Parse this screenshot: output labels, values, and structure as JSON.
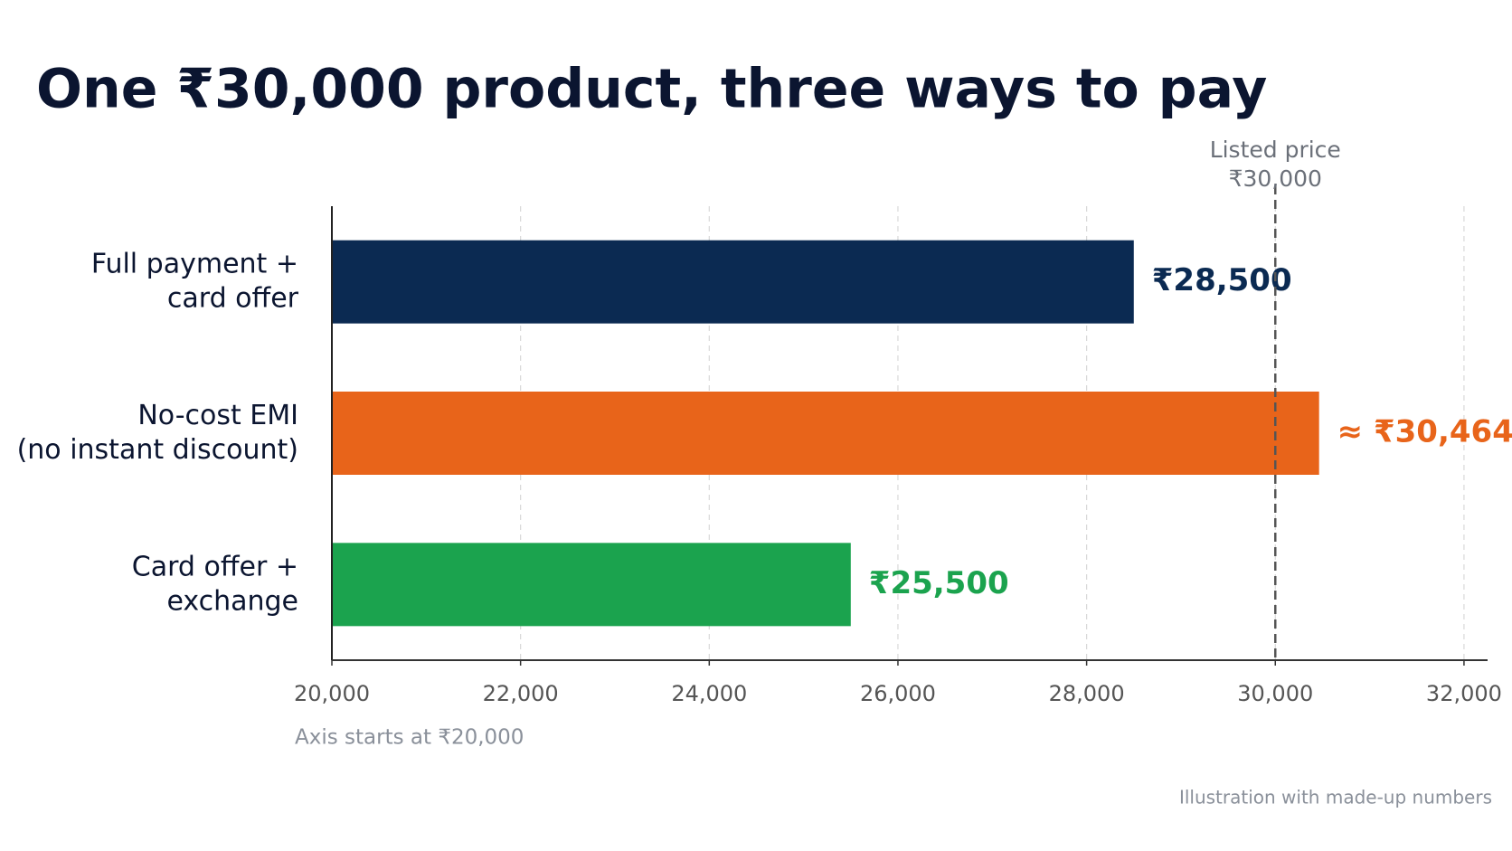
{
  "chart_data": {
    "type": "bar",
    "orientation": "horizontal",
    "title": "One ₹30,000 product, three ways to pay",
    "categories": [
      "Full payment +\ncard offer",
      "No-cost EMI\n(no instant discount)",
      "Card offer +\nexchange"
    ],
    "values": [
      28500,
      30464,
      25500
    ],
    "value_labels": [
      "₹28,500",
      "≈ ₹30,464",
      "₹25,500"
    ],
    "colors": [
      "#0b2a52",
      "#e8641a",
      "#1ba34e"
    ],
    "xlim": [
      20000,
      32250
    ],
    "xticks": [
      {
        "value": 20000,
        "label": "20,000"
      },
      {
        "value": 22000,
        "label": "22,000"
      },
      {
        "value": 24000,
        "label": "24,000"
      },
      {
        "value": 26000,
        "label": "26,000"
      },
      {
        "value": 28000,
        "label": "28,000"
      },
      {
        "value": 30000,
        "label": "30,000"
      },
      {
        "value": 32000,
        "label": "32,000"
      }
    ],
    "grid": true,
    "reference_line": {
      "value": 30000,
      "label": "Listed price\n₹30,000"
    },
    "axis_note": "Axis starts at ₹20,000",
    "footnote": "Illustration with made-up numbers"
  }
}
